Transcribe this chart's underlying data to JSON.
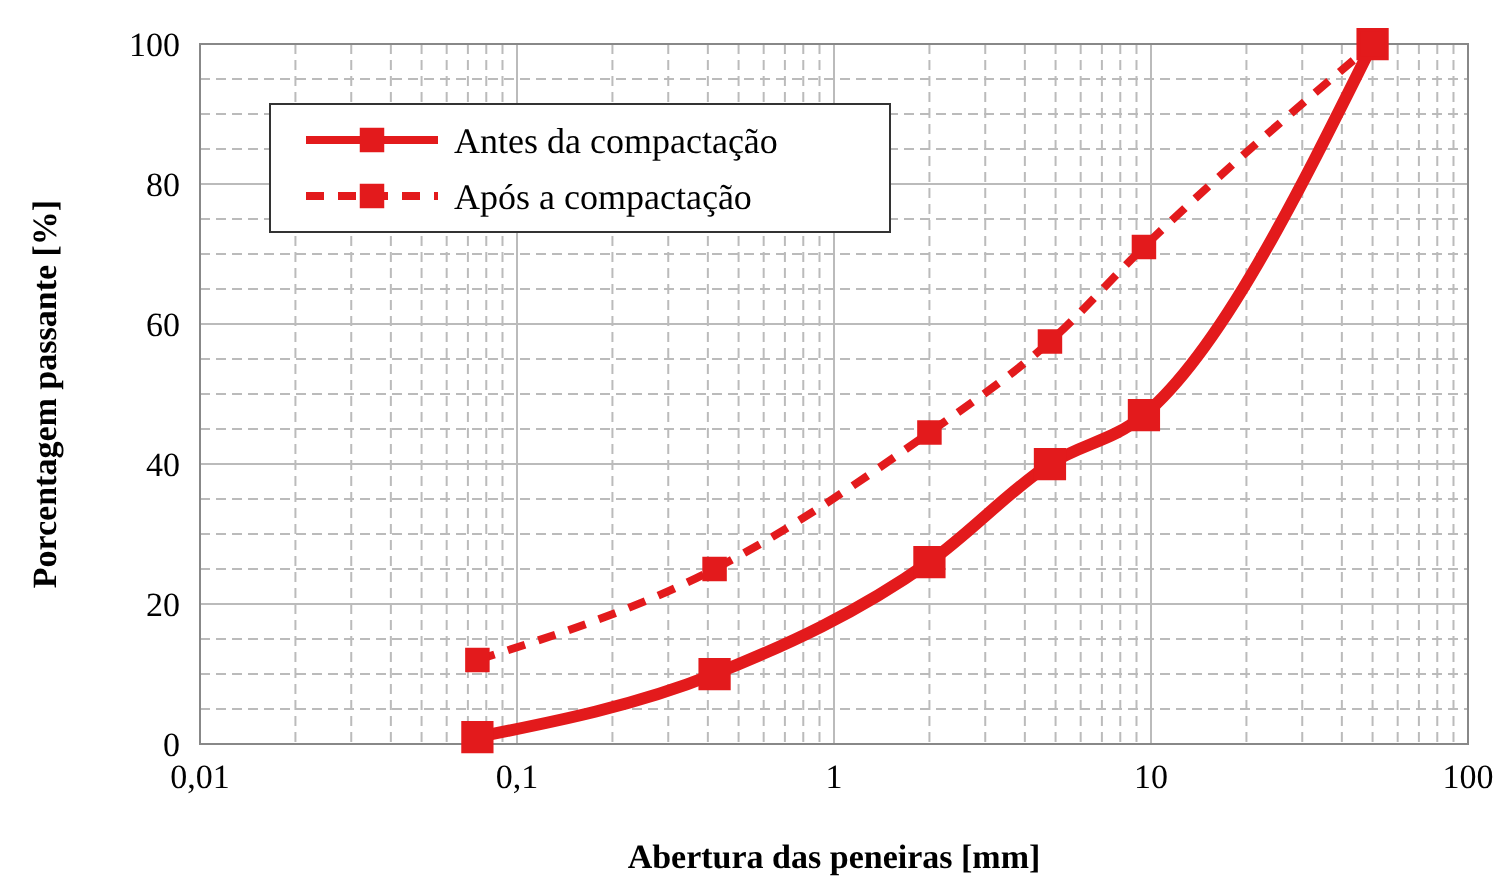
{
  "chart_data": {
    "type": "line",
    "xlabel": "Abertura das peneiras [mm]",
    "ylabel": "Porcentagem passante [%]",
    "x": [
      0.075,
      0.42,
      2.0,
      4.8,
      9.5,
      50
    ],
    "series": [
      {
        "name": "Antes da compactação",
        "color": "#e31a1c",
        "values": [
          1,
          10,
          26,
          40,
          47,
          100
        ],
        "line_style": "solid"
      },
      {
        "name": "Após a compactação",
        "color": "#e31a1c",
        "values": [
          12,
          25,
          44.5,
          57.5,
          71,
          100
        ],
        "line_style": "dashed"
      }
    ],
    "log": "x",
    "xlim": [
      0.01,
      100
    ],
    "xticks": [
      {
        "value": 0.01,
        "label": "0,01"
      },
      {
        "value": 0.02,
        "label": null
      },
      {
        "value": 0.03,
        "label": null
      },
      {
        "value": 0.04,
        "label": null
      },
      {
        "value": 0.05,
        "label": null
      },
      {
        "value": 0.06,
        "label": null
      },
      {
        "value": 0.07,
        "label": null
      },
      {
        "value": 0.08,
        "label": null
      },
      {
        "value": 0.09,
        "label": null
      },
      {
        "value": 0.1,
        "label": "0,1"
      },
      {
        "value": 0.2,
        "label": null
      },
      {
        "value": 0.3,
        "label": null
      },
      {
        "value": 0.4,
        "label": null
      },
      {
        "value": 0.5,
        "label": null
      },
      {
        "value": 0.6,
        "label": null
      },
      {
        "value": 0.7,
        "label": null
      },
      {
        "value": 0.8,
        "label": null
      },
      {
        "value": 0.9,
        "label": null
      },
      1,
      {
        "value": 2,
        "label": null
      },
      {
        "value": 3,
        "label": null
      },
      {
        "value": 4,
        "label": null
      },
      {
        "value": 5,
        "label": null
      },
      {
        "value": 6,
        "label": null
      },
      {
        "value": 7,
        "label": null
      },
      {
        "value": 8,
        "label": null
      },
      {
        "value": 9,
        "label": null
      },
      10,
      {
        "value": 20,
        "label": null
      },
      {
        "value": 30,
        "label": null
      },
      {
        "value": 40,
        "label": null
      },
      {
        "value": 50,
        "label": null
      },
      {
        "value": 60,
        "label": null
      },
      {
        "value": 70,
        "label": null
      },
      {
        "value": 80,
        "label": null
      },
      {
        "value": 90,
        "label": null
      },
      100
    ],
    "ylim": [
      0,
      100
    ],
    "yticks": [
      0,
      {
        "value": 5,
        "label": null
      },
      {
        "value": 10,
        "label": null
      },
      {
        "value": 15,
        "label": null
      },
      20,
      {
        "value": 25,
        "label": null
      },
      {
        "value": 30,
        "label": null
      },
      {
        "value": 35,
        "label": null
      },
      40,
      {
        "value": 45,
        "label": null
      },
      {
        "value": 50,
        "label": null
      },
      {
        "value": 55,
        "label": null
      },
      60,
      {
        "value": 65,
        "label": null
      },
      {
        "value": 70,
        "label": null
      },
      {
        "value": 75,
        "label": null
      },
      80,
      {
        "value": 85,
        "label": null
      },
      {
        "value": 90,
        "label": null
      },
      {
        "value": 95,
        "label": null
      },
      100
    ],
    "grid": true,
    "legend": "top left",
    "marker": "square"
  }
}
